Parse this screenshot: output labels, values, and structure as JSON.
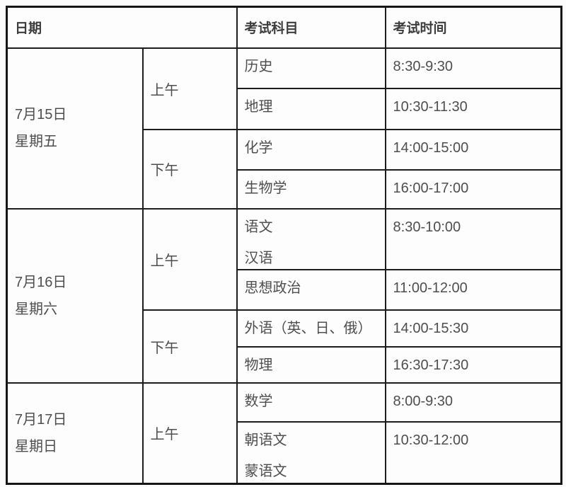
{
  "table": {
    "headers": {
      "date": "日期",
      "subject": "考试科目",
      "time": "考试时间"
    },
    "days": [
      {
        "date_lines": [
          "7月15日",
          "星期五"
        ],
        "sessions": [
          {
            "label": "上午",
            "exams": [
              {
                "subject_lines": [
                  "历史"
                ],
                "time": "8:30-9:30"
              },
              {
                "subject_lines": [
                  "地理"
                ],
                "time": "10:30-11:30"
              }
            ]
          },
          {
            "label": "下午",
            "exams": [
              {
                "subject_lines": [
                  "化学"
                ],
                "time": "14:00-15:00"
              },
              {
                "subject_lines": [
                  "生物学"
                ],
                "time": "16:00-17:00"
              }
            ]
          }
        ]
      },
      {
        "date_lines": [
          "7月16日",
          "星期六"
        ],
        "sessions": [
          {
            "label": "上午",
            "exams": [
              {
                "subject_lines": [
                  "语文",
                  "汉语"
                ],
                "time": "8:30-10:00"
              },
              {
                "subject_lines": [
                  "思想政治"
                ],
                "time": "11:00-12:00"
              }
            ]
          },
          {
            "label": "下午",
            "exams": [
              {
                "subject_lines": [
                  "外语（英、日、俄）"
                ],
                "time": "14:00-15:30"
              },
              {
                "subject_lines": [
                  "物理"
                ],
                "time": "16:30-17:30"
              }
            ]
          }
        ]
      },
      {
        "date_lines": [
          "7月17日",
          "星期日"
        ],
        "sessions": [
          {
            "label": "上午",
            "exams": [
              {
                "subject_lines": [
                  "数学"
                ],
                "time": "8:00-9:30"
              },
              {
                "subject_lines": [
                  "朝语文",
                  "蒙语文"
                ],
                "time": "10:30-12:00"
              }
            ]
          }
        ]
      }
    ]
  },
  "colors": {
    "border": "#1c1c1c",
    "outer_border": "#161616",
    "text": "#4e4e4e",
    "header_text": "#3d3d3d",
    "background": "#fcfcfc",
    "cell_background": "#fdfdfd"
  }
}
